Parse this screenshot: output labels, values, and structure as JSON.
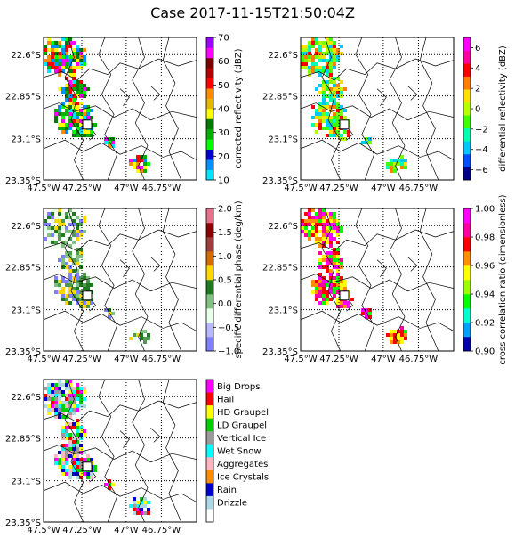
{
  "figure_title": "Case 2017-11-15T21:50:04Z",
  "chart_data": [
    {
      "type": "heatmap",
      "name": "corrected-reflectivity",
      "colorbar_label": "corrected reflectivity (dBZ)",
      "colorbar_ticks": [
        "10",
        "20",
        "30",
        "40",
        "50",
        "60",
        "70"
      ],
      "colorbar_range": [
        10,
        70
      ],
      "colorbar_colors": [
        "#00e5ff",
        "#0090ff",
        "#0000d0",
        "#00ff00",
        "#00b000",
        "#007a00",
        "#ffff00",
        "#e5b800",
        "#ff8c00",
        "#ff0000",
        "#b40000",
        "#7a0000",
        "#ff00ff",
        "#9a00ff"
      ],
      "lat_ticks": [
        "22.6°S",
        "22.85°S",
        "23.1°S",
        "23.35°S"
      ],
      "lon_ticks": [
        "47.5°W",
        "47.25°W",
        "47°W",
        "46.75°W"
      ]
    },
    {
      "type": "heatmap",
      "name": "differential-reflectivity",
      "colorbar_label": "differential reflectivity (dBZ)",
      "colorbar_ticks": [
        "6",
        "4",
        "2",
        "0",
        "−2",
        "−4",
        "−6"
      ],
      "colorbar_range": [
        -7,
        7
      ],
      "colorbar_colors": [
        "#00008b",
        "#0050ff",
        "#00c8ff",
        "#00ffb0",
        "#40ff00",
        "#b8ff00",
        "#ffe000",
        "#ff8000",
        "#ff0000",
        "#ff00a0",
        "#ff00ff"
      ],
      "lat_ticks": [
        "22.6°S",
        "22.85°S",
        "23.1°S",
        "23.35°S"
      ],
      "lon_ticks": [
        "47.5°W",
        "47.25°W",
        "47°W",
        "46.75°W"
      ]
    },
    {
      "type": "heatmap",
      "name": "specific-differential-phase",
      "colorbar_label": "specific differential phase (deg/km)",
      "colorbar_ticks": [
        "2.0",
        "1.5",
        "1.0",
        "0.5",
        "0.0",
        "−0.5",
        "−1.0"
      ],
      "colorbar_range": [
        -1,
        2
      ],
      "colorbar_colors": [
        "#7f7fff",
        "#b8b8ff",
        "#e8ffe8",
        "#80c080",
        "#1f7a1f",
        "#ffd700",
        "#d46a00",
        "#a03c3c",
        "#8b0000",
        "#e8708a"
      ],
      "lat_ticks": [
        "22.6°S",
        "22.85°S",
        "23.1°S",
        "23.35°S"
      ],
      "lon_ticks": [
        "47.5°W",
        "47.25°W",
        "47°W",
        "46.75°W"
      ]
    },
    {
      "type": "heatmap",
      "name": "cross-correlation-ratio",
      "colorbar_label": "cross correlation ratio (dimensionless)",
      "colorbar_ticks": [
        "1.00",
        "0.98",
        "0.96",
        "0.94",
        "0.92",
        "0.90"
      ],
      "colorbar_range": [
        0.9,
        1.0
      ],
      "colorbar_colors": [
        "#0000b0",
        "#00a0ff",
        "#00ffd0",
        "#00ff00",
        "#9cff00",
        "#ffff00",
        "#ff9000",
        "#ff0000",
        "#ff00a0",
        "#ff00ff"
      ],
      "lat_ticks": [
        "22.6°S",
        "22.85°S",
        "23.1°S",
        "23.35°S"
      ],
      "lon_ticks": [
        "47.5°W",
        "47.25°W",
        "47°W",
        "46.75°W"
      ]
    },
    {
      "type": "heatmap",
      "name": "hydrometeor-classification",
      "legend_entries": [
        {
          "label": "Big Drops",
          "color": "#ff00ff"
        },
        {
          "label": "Hail",
          "color": "#ff0000"
        },
        {
          "label": "HD Graupel",
          "color": "#ffff00"
        },
        {
          "label": "LD Graupel",
          "color": "#00d000"
        },
        {
          "label": "Vertical Ice",
          "color": "#9a9a9a"
        },
        {
          "label": "Wet Snow",
          "color": "#00ffff"
        },
        {
          "label": "Aggregates",
          "color": "#ffb6c1"
        },
        {
          "label": "Ice Crystals",
          "color": "#ff8c00"
        },
        {
          "label": "Rain",
          "color": "#0000cd"
        },
        {
          "label": "Drizzle",
          "color": "#add8e6"
        }
      ],
      "lat_ticks": [
        "22.6°S",
        "22.85°S",
        "23.1°S",
        "23.35°S"
      ],
      "lon_ticks": [
        "47.5°W",
        "47.25°W",
        "47°W",
        "46.75°W"
      ]
    }
  ]
}
